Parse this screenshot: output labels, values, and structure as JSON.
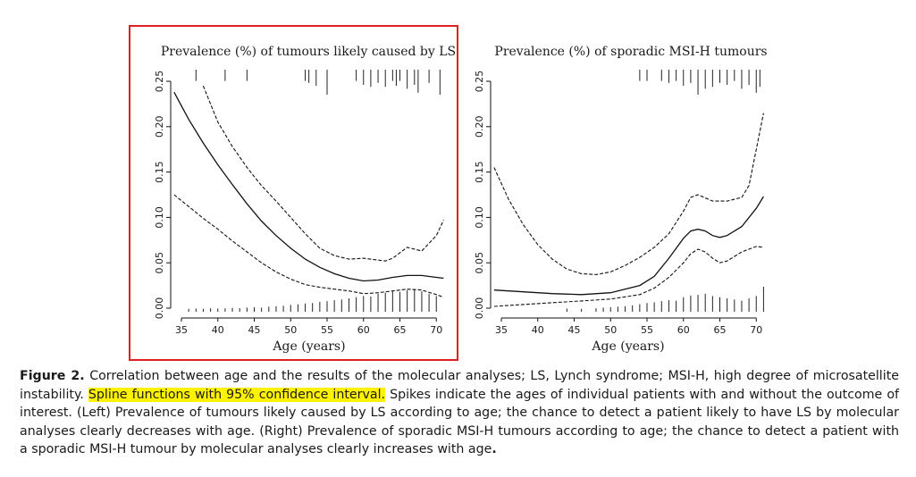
{
  "figure": {
    "highlight_box_color": "#e02020",
    "highlight_text_color": "#fff200"
  },
  "chart_data": [
    {
      "type": "line",
      "title": "Prevalence (%) of tumours likely caused by LS",
      "xlabel": "Age (years)",
      "ylabel": "",
      "xlim": [
        34,
        71
      ],
      "ylim": [
        0,
        0.25
      ],
      "x_ticks": [
        "35",
        "40",
        "45",
        "50",
        "55",
        "60",
        "65",
        "70"
      ],
      "y_ticks": [
        "0.00",
        "0.05",
        "0.10",
        "0.15",
        "0.20",
        "0.25"
      ],
      "series": [
        {
          "name": "spline",
          "style": "solid",
          "x": [
            34,
            36,
            38,
            40,
            42,
            44,
            46,
            48,
            50,
            52,
            54,
            56,
            58,
            60,
            62,
            64,
            66,
            68,
            70,
            71
          ],
          "y": [
            0.238,
            0.208,
            0.182,
            0.158,
            0.136,
            0.115,
            0.096,
            0.08,
            0.066,
            0.054,
            0.045,
            0.038,
            0.033,
            0.03,
            0.031,
            0.034,
            0.036,
            0.036,
            0.034,
            0.033
          ]
        },
        {
          "name": "upper 95% CI",
          "style": "dashed",
          "x": [
            38,
            40,
            42,
            44,
            46,
            48,
            50,
            52,
            54,
            56,
            58,
            60,
            62,
            63,
            64,
            66,
            68,
            70,
            71
          ],
          "y": [
            0.245,
            0.205,
            0.178,
            0.155,
            0.135,
            0.118,
            0.1,
            0.082,
            0.066,
            0.058,
            0.054,
            0.055,
            0.053,
            0.052,
            0.055,
            0.067,
            0.063,
            0.08,
            0.097
          ]
        },
        {
          "name": "lower 95% CI",
          "style": "dashed",
          "x": [
            34,
            36,
            38,
            40,
            42,
            44,
            46,
            48,
            50,
            52,
            54,
            56,
            58,
            60,
            62,
            64,
            66,
            68,
            70,
            71
          ],
          "y": [
            0.125,
            0.112,
            0.099,
            0.087,
            0.074,
            0.062,
            0.05,
            0.04,
            0.032,
            0.026,
            0.023,
            0.021,
            0.019,
            0.016,
            0.017,
            0.019,
            0.021,
            0.02,
            0.015,
            0.012
          ]
        }
      ],
      "spikes_top": {
        "ages": [
          37,
          41,
          44,
          52,
          52.5,
          53.5,
          55,
          59,
          60,
          61,
          62,
          63,
          64,
          64.5,
          65,
          66,
          67,
          67.5,
          69,
          70.5
        ],
        "heights": [
          0.3,
          0.3,
          0.3,
          0.3,
          0.4,
          0.55,
          1,
          0.3,
          0.5,
          0.6,
          0.4,
          0.6,
          0.3,
          0.55,
          0.3,
          0.7,
          0.5,
          0.9,
          0.4,
          1
        ]
      },
      "spikes_bottom": {
        "ages": [
          36,
          37,
          38,
          39,
          40,
          41,
          42,
          43,
          44,
          45,
          46,
          47,
          48,
          49,
          50,
          51,
          52,
          53,
          54,
          55,
          56,
          57,
          58,
          59,
          60,
          61,
          62,
          63,
          64,
          65,
          66,
          67,
          68,
          69,
          70
        ],
        "heights": [
          0.05,
          0.06,
          0.05,
          0.07,
          0.06,
          0.07,
          0.09,
          0.08,
          0.1,
          0.12,
          0.1,
          0.14,
          0.16,
          0.18,
          0.22,
          0.24,
          0.28,
          0.3,
          0.35,
          0.38,
          0.42,
          0.45,
          0.5,
          0.55,
          0.6,
          0.58,
          0.7,
          0.75,
          0.8,
          0.78,
          0.85,
          0.9,
          0.8,
          0.7,
          0.6
        ]
      }
    },
    {
      "type": "line",
      "title": "Prevalence (%) of sporadic MSI-H tumours",
      "xlabel": "Age (years)",
      "ylabel": "",
      "xlim": [
        34,
        71
      ],
      "ylim": [
        0,
        0.25
      ],
      "x_ticks": [
        "35",
        "40",
        "45",
        "50",
        "55",
        "60",
        "65",
        "70"
      ],
      "y_ticks": [
        "0.00",
        "0.05",
        "0.10",
        "0.15",
        "0.20",
        "0.25"
      ],
      "series": [
        {
          "name": "spline",
          "style": "solid",
          "x": [
            34,
            38,
            42,
            46,
            50,
            54,
            56,
            58,
            60,
            61,
            62,
            63,
            64,
            65,
            66,
            68,
            70,
            71
          ],
          "y": [
            0.02,
            0.018,
            0.016,
            0.015,
            0.017,
            0.025,
            0.035,
            0.055,
            0.077,
            0.085,
            0.087,
            0.085,
            0.08,
            0.078,
            0.08,
            0.09,
            0.11,
            0.123
          ]
        },
        {
          "name": "upper 95% CI",
          "style": "dashed",
          "x": [
            34,
            36,
            38,
            40,
            42,
            44,
            46,
            48,
            50,
            52,
            54,
            56,
            58,
            60,
            61,
            62,
            64,
            66,
            68,
            69,
            70,
            71
          ],
          "y": [
            0.155,
            0.12,
            0.092,
            0.07,
            0.054,
            0.043,
            0.038,
            0.037,
            0.04,
            0.047,
            0.056,
            0.067,
            0.082,
            0.107,
            0.122,
            0.125,
            0.118,
            0.118,
            0.122,
            0.135,
            0.175,
            0.215
          ]
        },
        {
          "name": "lower 95% CI",
          "style": "dashed",
          "x": [
            34,
            38,
            42,
            46,
            50,
            54,
            56,
            58,
            60,
            61,
            62,
            63,
            64,
            65,
            66,
            68,
            70,
            71
          ],
          "y": [
            0.002,
            0.004,
            0.006,
            0.008,
            0.01,
            0.015,
            0.022,
            0.034,
            0.05,
            0.06,
            0.065,
            0.062,
            0.055,
            0.05,
            0.052,
            0.062,
            0.068,
            0.067
          ]
        }
      ],
      "spikes_top": {
        "ages": [
          54,
          55,
          57,
          58,
          59,
          60,
          61,
          62,
          63,
          64,
          65,
          66,
          67,
          68,
          69,
          70,
          70.5
        ],
        "heights": [
          0.3,
          0.3,
          0.3,
          0.4,
          0.3,
          0.55,
          0.4,
          1,
          0.7,
          0.6,
          0.4,
          0.5,
          0.3,
          0.7,
          0.5,
          0.9,
          0.6
        ]
      },
      "spikes_bottom": {
        "ages": [
          44,
          46,
          48,
          49,
          50,
          51,
          52,
          53,
          54,
          55,
          56,
          57,
          58,
          59,
          60,
          61,
          62,
          63,
          64,
          65,
          66,
          67,
          68,
          69,
          70,
          71
        ],
        "heights": [
          0.06,
          0.05,
          0.07,
          0.1,
          0.12,
          0.14,
          0.16,
          0.2,
          0.25,
          0.3,
          0.33,
          0.38,
          0.42,
          0.4,
          0.55,
          0.62,
          0.65,
          0.7,
          0.6,
          0.55,
          0.5,
          0.45,
          0.4,
          0.5,
          0.6,
          1
        ]
      }
    }
  ],
  "caption": {
    "label": "Figure 2.",
    "part1": "Correlation between age and the results of the molecular analyses; LS, Lynch syndrome; MSI-H, high degree of microsatellite instability.",
    "highlighted": "Spline functions with 95% confidence interval.",
    "part2": "Spikes indicate the ages of individual patients with and without the outcome of interest. (Left) Prevalence of tumours likely caused by LS according to age; the chance to detect a patient likely to have LS by molecular analyses clearly decreases with age. (Right) Prevalence of sporadic MSI-H tumours according to age; the chance to detect a patient with a sporadic MSI-H tumour by molecular analyses clearly increases with age",
    "end_period": "."
  }
}
